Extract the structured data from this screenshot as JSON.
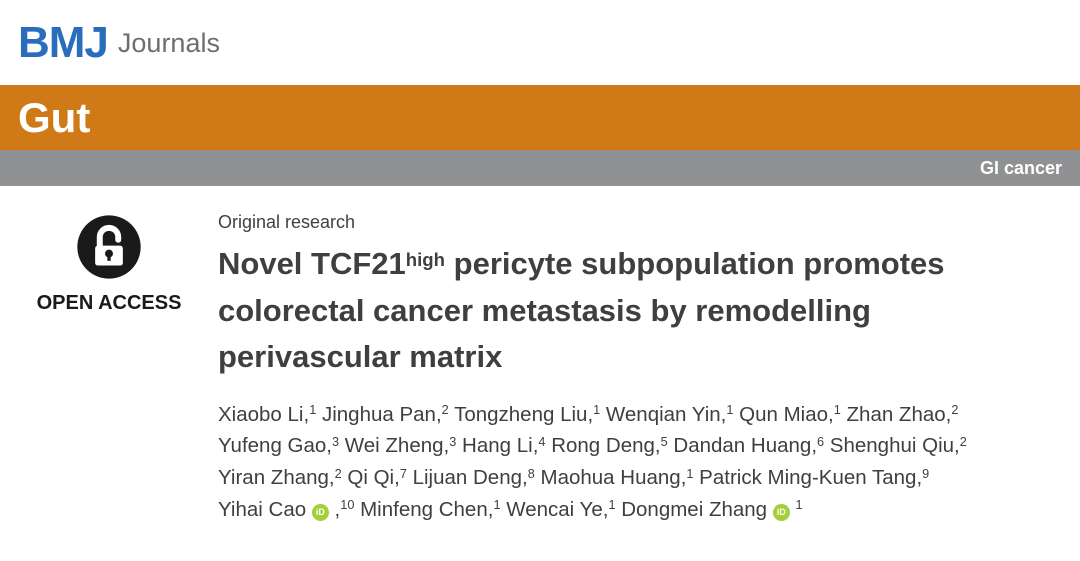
{
  "header": {
    "logo_bmj": "BMJ",
    "logo_journals": "Journals",
    "bmj_blue": "#2a6ebb"
  },
  "journal": {
    "name": "Gut",
    "banner_color": "#cf7a17",
    "category": "GI cancer",
    "category_bar_color": "#8f9193"
  },
  "article": {
    "open_access_label": "OPEN ACCESS",
    "section_label": "Original research",
    "title": {
      "pre": "Novel TCF21",
      "sup": "high",
      "post": " pericyte subpopulation promotes colorectal cancer metastasis by remodelling perivascular matrix"
    },
    "orcid_icon_label": "iD",
    "orcid_color": "#a6ce39",
    "authors": [
      {
        "name": "Xiaobo Li",
        "sup": "1"
      },
      {
        "name": "Jinghua Pan",
        "sup": "2"
      },
      {
        "name": "Tongzheng Liu",
        "sup": "1"
      },
      {
        "name": "Wenqian Yin",
        "sup": "1"
      },
      {
        "name": "Qun Miao",
        "sup": "1"
      },
      {
        "name": "Zhan Zhao",
        "sup": "2"
      },
      {
        "name": "Yufeng Gao",
        "sup": "3"
      },
      {
        "name": "Wei Zheng",
        "sup": "3"
      },
      {
        "name": "Hang Li",
        "sup": "4"
      },
      {
        "name": "Rong Deng",
        "sup": "5"
      },
      {
        "name": "Dandan Huang",
        "sup": "6"
      },
      {
        "name": "Shenghui Qiu",
        "sup": "2"
      },
      {
        "name": "Yiran Zhang",
        "sup": "2"
      },
      {
        "name": "Qi Qi",
        "sup": "7"
      },
      {
        "name": "Lijuan Deng",
        "sup": "8"
      },
      {
        "name": "Maohua Huang",
        "sup": "1"
      },
      {
        "name": "Patrick Ming-Kuen Tang",
        "sup": "9"
      },
      {
        "name": "Yihai Cao",
        "orcid": true,
        "sup": "10"
      },
      {
        "name": "Minfeng Chen",
        "sup": "1"
      },
      {
        "name": "Wencai Ye",
        "sup": "1"
      },
      {
        "name": "Dongmei Zhang",
        "orcid": true,
        "sup": "1"
      }
    ]
  }
}
